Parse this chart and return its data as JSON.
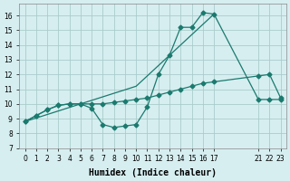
{
  "background_color": "#d6eef0",
  "grid_color": "#aacccc",
  "line_color": "#1a7a6e",
  "xlabel": "Humidex (Indice chaleur)",
  "xlim": [
    -0.5,
    23.5
  ],
  "ylim": [
    7,
    16.8
  ],
  "yticks": [
    7,
    8,
    9,
    10,
    11,
    12,
    13,
    14,
    15,
    16
  ],
  "xticks": [
    0,
    1,
    2,
    3,
    4,
    5,
    6,
    7,
    8,
    9,
    10,
    11,
    12,
    13,
    14,
    15,
    16,
    17,
    21,
    22,
    23
  ],
  "xtick_labels": [
    "0",
    "1",
    "2",
    "3",
    "4",
    "5",
    "6",
    "7",
    "8",
    "9",
    "10",
    "11",
    "12",
    "13",
    "14",
    "15",
    "16",
    "17",
    "21",
    "22",
    "23"
  ],
  "line1_x": [
    0,
    1,
    2,
    3,
    4,
    5,
    6,
    7,
    8,
    9,
    10,
    11,
    12,
    13,
    14,
    15,
    16,
    17,
    21,
    22,
    23
  ],
  "line1_y": [
    8.8,
    9.2,
    9.6,
    9.9,
    10.0,
    10.0,
    9.7,
    8.6,
    8.4,
    8.5,
    8.6,
    9.8,
    12.0,
    13.3,
    15.2,
    15.2,
    16.2,
    16.1,
    10.3,
    10.3,
    10.3
  ],
  "line2_x": [
    0,
    1,
    2,
    3,
    4,
    5,
    6,
    7,
    8,
    9,
    10,
    11,
    12,
    13,
    14,
    15,
    16,
    17,
    21,
    22,
    23
  ],
  "line2_y": [
    8.8,
    9.2,
    9.6,
    9.9,
    10.0,
    10.0,
    10.0,
    10.0,
    10.1,
    10.2,
    10.3,
    10.4,
    10.6,
    10.8,
    11.0,
    11.2,
    11.4,
    11.5,
    11.9,
    12.0,
    10.4
  ],
  "line3_x": [
    0,
    5,
    10,
    17
  ],
  "line3_y": [
    8.8,
    10.0,
    11.2,
    16.1
  ],
  "marker": "D",
  "markersize": 2.5
}
